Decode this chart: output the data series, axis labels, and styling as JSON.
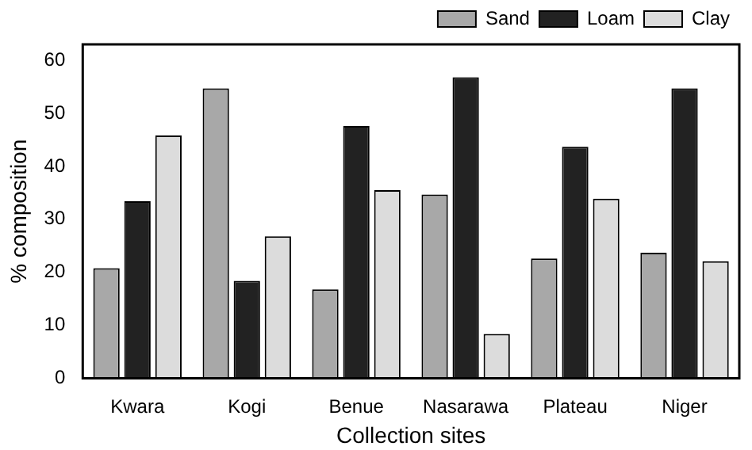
{
  "chart_data": {
    "type": "bar",
    "xlabel": "Collection sites",
    "ylabel": "% composition",
    "categories": [
      "Kwara",
      "Kogi",
      "Benue",
      "Nasarawa",
      "Plateau",
      "Niger"
    ],
    "series": [
      {
        "name": "Sand",
        "color": "#a8a8a8",
        "values": [
          20.8,
          54.7,
          16.8,
          34.7,
          22.6,
          23.7
        ]
      },
      {
        "name": "Loam",
        "color": "#222222",
        "values": [
          33.4,
          18.4,
          47.6,
          56.8,
          43.7,
          54.7
        ]
      },
      {
        "name": "Clay",
        "color": "#dcdcdc",
        "values": [
          45.8,
          26.8,
          35.5,
          8.4,
          33.9,
          22.1
        ]
      }
    ],
    "ylim": [
      0,
      63
    ],
    "yticks": [
      0,
      10,
      20,
      30,
      40,
      50,
      60
    ],
    "grid": false,
    "legend": "top right"
  }
}
